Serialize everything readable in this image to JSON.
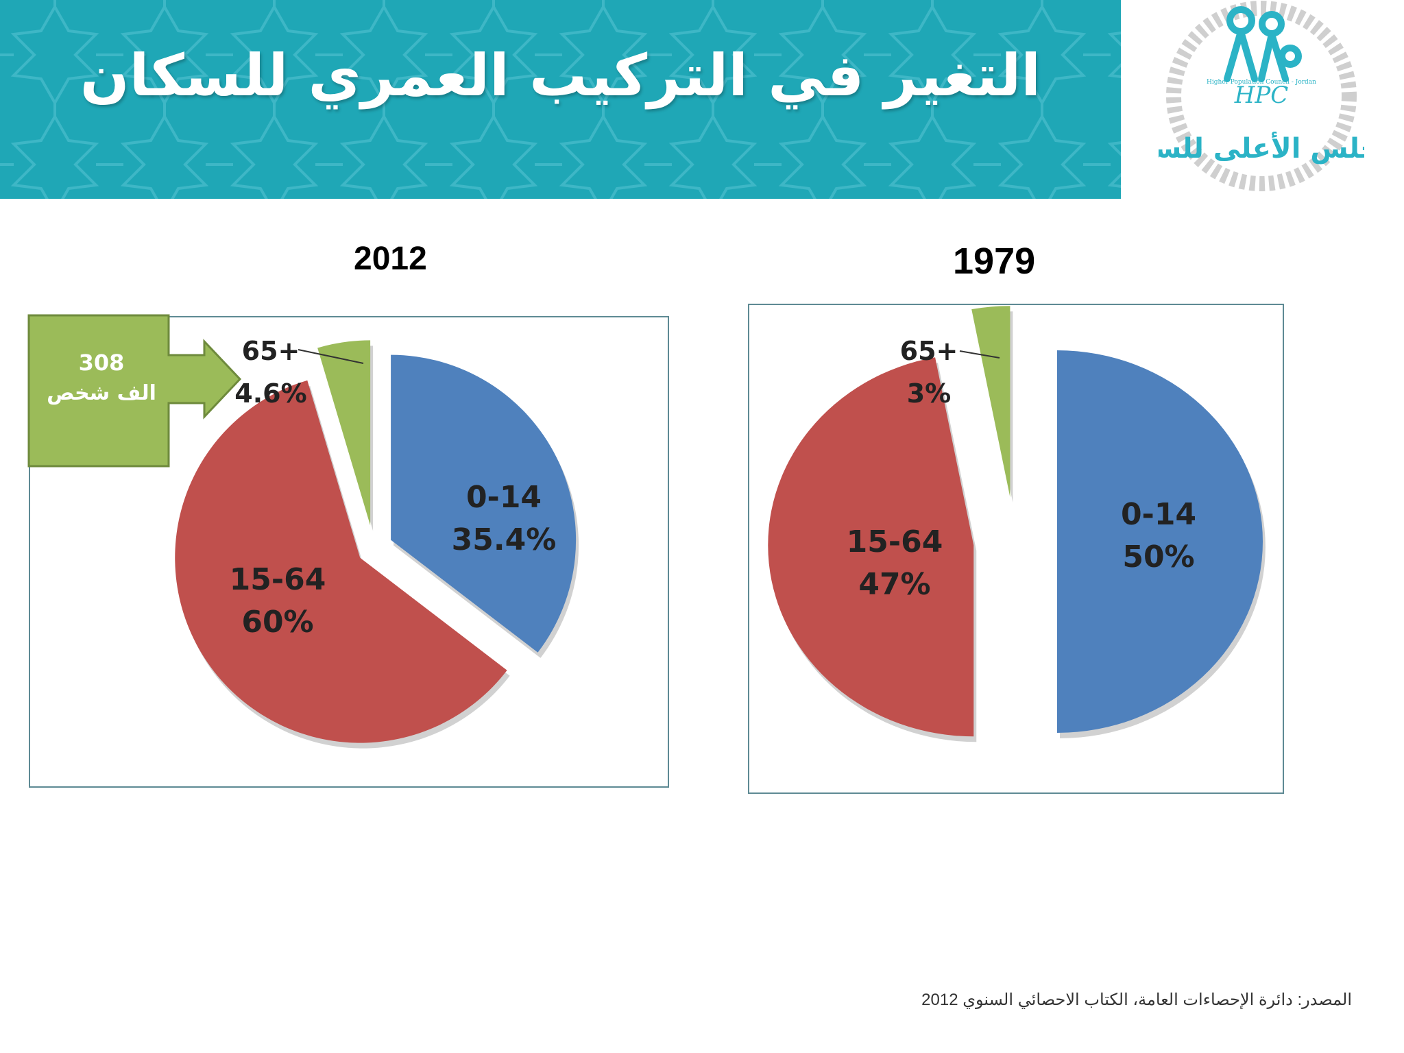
{
  "slide": {
    "title": "التغير في التركيب العمري للسكان",
    "source": "المصدر: دائرة الإحصاءات العامة، الكتاب الاحصائي السنوي 2012"
  },
  "logo": {
    "abbr": "HPC",
    "name_en": "Higher Population Council - Jordan",
    "name_ar": "المجلس الأعلى للسكان"
  },
  "callout": {
    "value": "308",
    "unit": "الف شخص"
  },
  "colors": {
    "banner": "#1fa7b6",
    "blue": "#4f81bd",
    "red": "#c0504d",
    "green": "#9bbb59"
  },
  "chart_data": [
    {
      "type": "pie",
      "title": "2012",
      "categories": [
        "0-14",
        "15-64",
        "65+"
      ],
      "values": [
        35.4,
        60,
        4.6
      ],
      "value_labels": [
        "35.4%",
        "60%",
        "4.6%"
      ],
      "colors": [
        "#4f81bd",
        "#c0504d",
        "#9bbb59"
      ],
      "exploded": true
    },
    {
      "type": "pie",
      "title": "1979",
      "categories": [
        "0-14",
        "15-64",
        "65+"
      ],
      "values": [
        50,
        47,
        3
      ],
      "value_labels": [
        "50%",
        "47%",
        "3%"
      ],
      "colors": [
        "#4f81bd",
        "#c0504d",
        "#9bbb59"
      ],
      "exploded": true
    }
  ]
}
